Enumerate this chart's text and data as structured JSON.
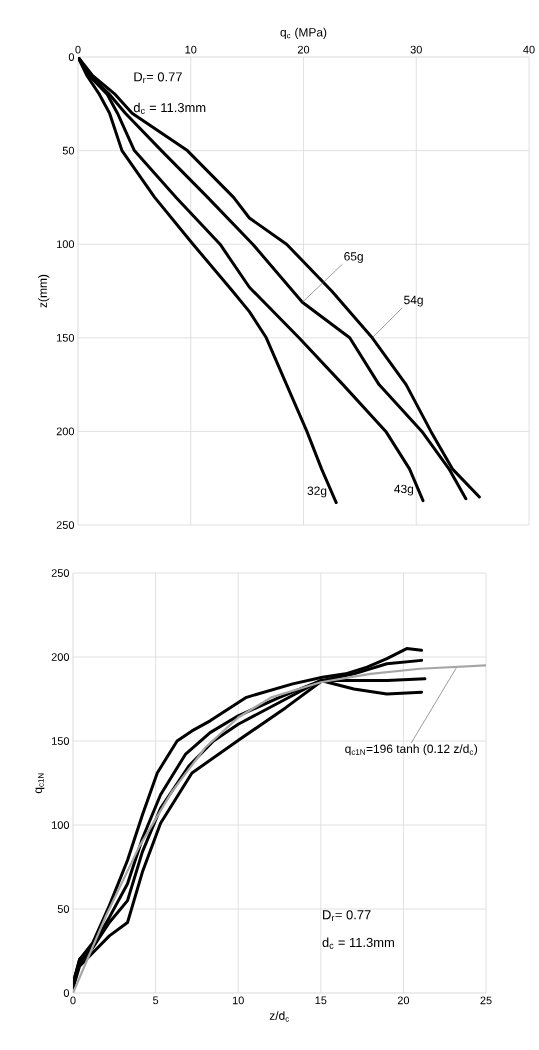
{
  "chart_data": [
    {
      "type": "line",
      "xlabel": "q$_{c}$ (MPa)",
      "ylabel": "z(mm)",
      "xlim": [
        0,
        40
      ],
      "xticks": [
        0,
        10,
        20,
        30,
        40
      ],
      "ylim": [
        250,
        0
      ],
      "yticks": [
        0,
        50,
        100,
        150,
        200,
        250
      ],
      "grid": true,
      "marker": "none",
      "line_style": "solid",
      "series": [
        {
          "color": "#000000",
          "x": [
            0,
            0.8,
            1.9,
            2.8,
            3.9,
            6.8,
            10.2,
            13.7,
            15.2,
            16.7,
            18.5,
            20.3,
            21.6,
            22.9
          ],
          "values": [
            0,
            10,
            20,
            30,
            50,
            75,
            100,
            125,
            136,
            150,
            175,
            200,
            220,
            238
          ]
        },
        {
          "color": "#000000",
          "x": [
            0,
            1.0,
            2.6,
            3.5,
            5.0,
            8.7,
            12.6,
            15.2,
            19.6,
            23.5,
            27.3,
            29.4,
            30.6
          ],
          "values": [
            0,
            10,
            20,
            30,
            50,
            75,
            100,
            123,
            150,
            175,
            200,
            220,
            237
          ]
        },
        {
          "color": "#000000",
          "x": [
            0,
            1.1,
            2.8,
            4.2,
            7.4,
            11.5,
            15.5,
            19.9,
            24.1,
            26.7,
            30.5,
            32.9,
            34.4
          ],
          "values": [
            0,
            10,
            20,
            30,
            50,
            75,
            100,
            131,
            150,
            175,
            200,
            220,
            236
          ]
        },
        {
          "color": "#000000",
          "x": [
            0,
            1.3,
            3.3,
            4.8,
            9.7,
            13.8,
            15.2,
            18.5,
            22.5,
            26.1,
            29.1,
            31.3,
            33.2,
            35.6
          ],
          "values": [
            0,
            10,
            20,
            30,
            50,
            75,
            86,
            100,
            125,
            150,
            175,
            200,
            220,
            235
          ]
        }
      ],
      "annotations": [
        "D$_{r}$= 0.77",
        "d$_{c}$ = 11.3mm",
        {
          "text": "65g",
          "x": 19.9,
          "y": 131
        },
        {
          "text": "54g",
          "x": 26.1,
          "y": 150
        },
        {
          "text": "32g",
          "x": 22.9,
          "y": 238
        },
        {
          "text": "43g",
          "x": 30.6,
          "y": 237
        }
      ]
    },
    {
      "type": "line",
      "xlabel": "z/d$_{c}$",
      "ylabel": "q$_{c1N}$",
      "xlim": [
        0,
        25
      ],
      "xticks": [
        0,
        5,
        10,
        15,
        20,
        25
      ],
      "ylim": [
        0,
        250
      ],
      "yticks": [
        0,
        50,
        100,
        150,
        200,
        250
      ],
      "grid": true,
      "marker": "none",
      "line_style": "solid",
      "series": [
        {
          "color": "#000000",
          "x": [
            0,
            0.4,
            1.2,
            2.2,
            3.3,
            4.2,
            5.1,
            6.3,
            7.2,
            8.3,
            10.5,
            13.3,
            15.1,
            16.5,
            17.8,
            19,
            20.2,
            21.1
          ],
          "values": [
            6,
            20,
            30,
            52,
            79,
            106,
            131,
            150,
            156,
            162,
            176,
            184,
            188,
            190,
            194,
            199,
            205,
            204
          ]
        },
        {
          "color": "#000000",
          "x": [
            0,
            0.4,
            1.2,
            2.2,
            3.3,
            4.2,
            5.3,
            6.8,
            8.3,
            10,
            12.5,
            15,
            17,
            19,
            21.1
          ],
          "values": [
            5,
            20,
            28,
            45,
            65,
            92,
            118,
            142,
            155,
            165,
            176,
            186,
            181,
            178,
            179
          ]
        },
        {
          "color": "#000000",
          "x": [
            0,
            0.4,
            1.2,
            2.2,
            3.3,
            4.2,
            5.3,
            7,
            8.5,
            10,
            12.5,
            15,
            17,
            19,
            21.3
          ],
          "values": [
            4,
            18,
            27,
            42,
            55,
            84,
            110,
            135,
            150,
            160,
            173,
            186,
            186,
            186,
            187
          ]
        },
        {
          "color": "#000000",
          "x": [
            0,
            0.4,
            1.2,
            2.2,
            3.3,
            4.2,
            5.3,
            7.2,
            10.1,
            12.9,
            15.1,
            17,
            19,
            21.1
          ],
          "values": [
            3,
            16,
            24,
            34,
            42,
            72,
            101,
            131,
            151,
            170,
            186,
            190,
            196,
            198
          ]
        },
        {
          "color": "#a6a6a6",
          "x": [
            0,
            2,
            4,
            6,
            8,
            10,
            12,
            15,
            18,
            21,
            25
          ],
          "values": [
            0,
            46,
            87,
            120,
            146,
            164,
            176,
            185,
            190,
            193,
            195
          ]
        }
      ],
      "annotations": [
        {
          "text": "q$_{c1N}$=196 tanh (0.12 z/d$_{c}$)",
          "x": 23.2,
          "y": 193.5
        },
        "D$_{r}$= 0.77",
        "d$_{c}$ = 11.3mm"
      ]
    }
  ]
}
